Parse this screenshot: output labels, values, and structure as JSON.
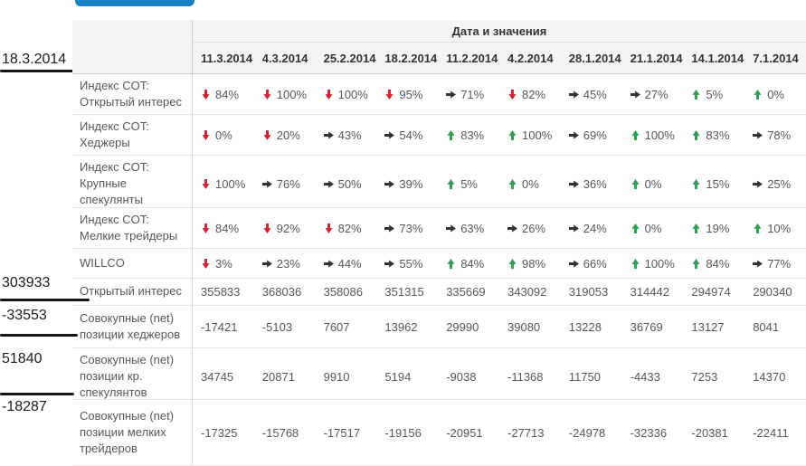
{
  "top_button": {
    "label": ""
  },
  "table": {
    "title": "Дата и значения",
    "dates": [
      "11.3.2014",
      "4.3.2014",
      "25.2.2014",
      "18.2.2014",
      "11.2.2014",
      "4.2.2014",
      "28.1.2014",
      "21.1.2014",
      "14.1.2014",
      "7.1.2014"
    ],
    "rows": [
      {
        "label": "Индекс COT: Открытый интерес",
        "type": "percent",
        "cells": [
          {
            "dir": "down",
            "value": "84%"
          },
          {
            "dir": "down",
            "value": "100%"
          },
          {
            "dir": "down",
            "value": "100%"
          },
          {
            "dir": "down",
            "value": "95%"
          },
          {
            "dir": "right",
            "value": "71%"
          },
          {
            "dir": "down",
            "value": "82%"
          },
          {
            "dir": "right",
            "value": "45%"
          },
          {
            "dir": "right",
            "value": "27%"
          },
          {
            "dir": "up",
            "value": "5%"
          },
          {
            "dir": "up",
            "value": "0%"
          }
        ]
      },
      {
        "label": "Индекс COT: Хеджеры",
        "type": "percent",
        "cells": [
          {
            "dir": "down",
            "value": "0%"
          },
          {
            "dir": "down",
            "value": "20%"
          },
          {
            "dir": "right",
            "value": "43%"
          },
          {
            "dir": "right",
            "value": "54%"
          },
          {
            "dir": "up",
            "value": "83%"
          },
          {
            "dir": "up",
            "value": "100%"
          },
          {
            "dir": "right",
            "value": "69%"
          },
          {
            "dir": "up",
            "value": "100%"
          },
          {
            "dir": "up",
            "value": "83%"
          },
          {
            "dir": "right",
            "value": "78%"
          }
        ]
      },
      {
        "label": "Индекс COT: Крупные спекулянты",
        "type": "percent",
        "cells": [
          {
            "dir": "down",
            "value": "100%"
          },
          {
            "dir": "right",
            "value": "76%"
          },
          {
            "dir": "right",
            "value": "50%"
          },
          {
            "dir": "right",
            "value": "39%"
          },
          {
            "dir": "up",
            "value": "5%"
          },
          {
            "dir": "up",
            "value": "0%"
          },
          {
            "dir": "right",
            "value": "36%"
          },
          {
            "dir": "up",
            "value": "0%"
          },
          {
            "dir": "up",
            "value": "15%"
          },
          {
            "dir": "right",
            "value": "25%"
          }
        ]
      },
      {
        "label": "Индекс COT: Мелкие трейдеры",
        "type": "percent",
        "cells": [
          {
            "dir": "down",
            "value": "84%"
          },
          {
            "dir": "down",
            "value": "92%"
          },
          {
            "dir": "down",
            "value": "82%"
          },
          {
            "dir": "right",
            "value": "73%"
          },
          {
            "dir": "right",
            "value": "63%"
          },
          {
            "dir": "right",
            "value": "26%"
          },
          {
            "dir": "right",
            "value": "24%"
          },
          {
            "dir": "up",
            "value": "0%"
          },
          {
            "dir": "up",
            "value": "19%"
          },
          {
            "dir": "up",
            "value": "10%"
          }
        ]
      },
      {
        "label": "WILLCO",
        "type": "percent",
        "cells": [
          {
            "dir": "down",
            "value": "3%"
          },
          {
            "dir": "right",
            "value": "23%"
          },
          {
            "dir": "right",
            "value": "44%"
          },
          {
            "dir": "right",
            "value": "55%"
          },
          {
            "dir": "up",
            "value": "84%"
          },
          {
            "dir": "up",
            "value": "98%"
          },
          {
            "dir": "right",
            "value": "66%"
          },
          {
            "dir": "up",
            "value": "100%"
          },
          {
            "dir": "up",
            "value": "84%"
          },
          {
            "dir": "right",
            "value": "77%"
          }
        ]
      },
      {
        "label": "Открытый интерес",
        "type": "number",
        "cells": [
          "355833",
          "368036",
          "358086",
          "351315",
          "335669",
          "343092",
          "319053",
          "314442",
          "294974",
          "290340"
        ]
      },
      {
        "label": "Совокупные (net) позиции хеджеров",
        "type": "number",
        "cells": [
          "-17421",
          "-5103",
          "7607",
          "13962",
          "29990",
          "39080",
          "13228",
          "36769",
          "13127",
          "8041"
        ]
      },
      {
        "label": "Совокупные (net) позиции кр. спекулянтов",
        "type": "number",
        "cells": [
          "34745",
          "20871",
          "9910",
          "5194",
          "-9038",
          "-11368",
          "11750",
          "-4433",
          "7253",
          "14370"
        ]
      },
      {
        "label": "Совокупные (net) позиции мелких трейдеров",
        "type": "number",
        "cells": [
          "-17325",
          "-15768",
          "-17517",
          "-19156",
          "-20951",
          "-27713",
          "-24978",
          "-32336",
          "-20381",
          "-22411"
        ]
      }
    ]
  },
  "left_annotations": [
    {
      "text": "18.3.2014"
    },
    {
      "text": "303933"
    },
    {
      "text": "-33553"
    },
    {
      "text": "51840"
    },
    {
      "text": "-18287"
    }
  ],
  "colors": {
    "button": "#1a80c4",
    "header_bg": "#f5f5f5",
    "arrow_up": "#2e9e4f",
    "arrow_down": "#d0252e",
    "arrow_right": "#333333"
  }
}
